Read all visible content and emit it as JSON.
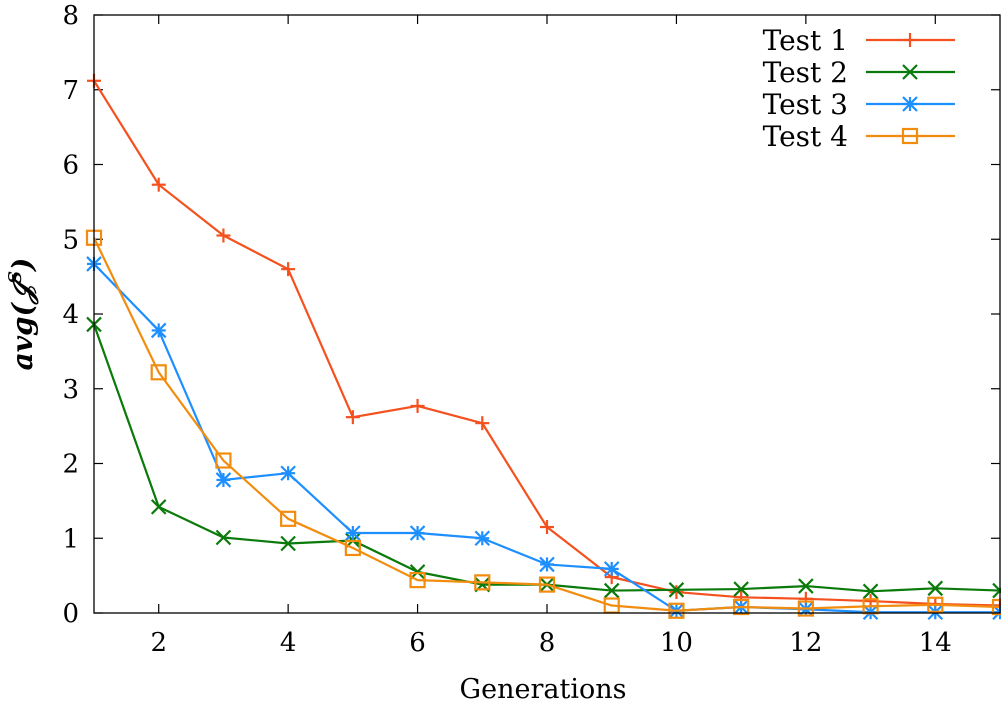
{
  "chart_data": {
    "type": "line",
    "title": "",
    "xlabel": "Generations",
    "ylabel": "avg(𝒥",
    "ylabel_sup": "S",
    "ylabel_close": ")",
    "xlim": [
      1,
      15
    ],
    "ylim": [
      0,
      8
    ],
    "xticks": [
      2,
      4,
      6,
      8,
      10,
      12,
      14
    ],
    "yticks": [
      0,
      1,
      2,
      3,
      4,
      5,
      6,
      7,
      8
    ],
    "grid": false,
    "legend_position": "top-right",
    "x": [
      1,
      2,
      3,
      4,
      5,
      6,
      7,
      8,
      9,
      10,
      11,
      12,
      13,
      14,
      15
    ],
    "series": [
      {
        "name": "Test 1",
        "color": "#f4511e",
        "marker": "plus",
        "values": [
          7.12,
          5.73,
          5.05,
          4.6,
          2.62,
          2.77,
          2.54,
          1.15,
          0.48,
          0.28,
          0.21,
          0.19,
          0.16,
          0.12,
          0.1
        ]
      },
      {
        "name": "Test 2",
        "color": "#0a7a0a",
        "marker": "cross",
        "values": [
          3.86,
          1.42,
          1.01,
          0.93,
          0.97,
          0.55,
          0.38,
          0.38,
          0.3,
          0.31,
          0.32,
          0.36,
          0.29,
          0.33,
          0.3
        ]
      },
      {
        "name": "Test 3",
        "color": "#1e8fff",
        "marker": "star",
        "values": [
          4.67,
          3.78,
          1.78,
          1.87,
          1.07,
          1.07,
          1.0,
          0.65,
          0.59,
          0.03,
          0.08,
          0.05,
          0.01,
          0.01,
          0.01
        ]
      },
      {
        "name": "Test 4",
        "color": "#f28c0f",
        "marker": "square",
        "values": [
          5.02,
          3.22,
          2.04,
          1.26,
          0.87,
          0.44,
          0.41,
          0.38,
          0.1,
          0.03,
          0.08,
          0.06,
          0.09,
          0.11,
          0.08
        ]
      }
    ]
  }
}
